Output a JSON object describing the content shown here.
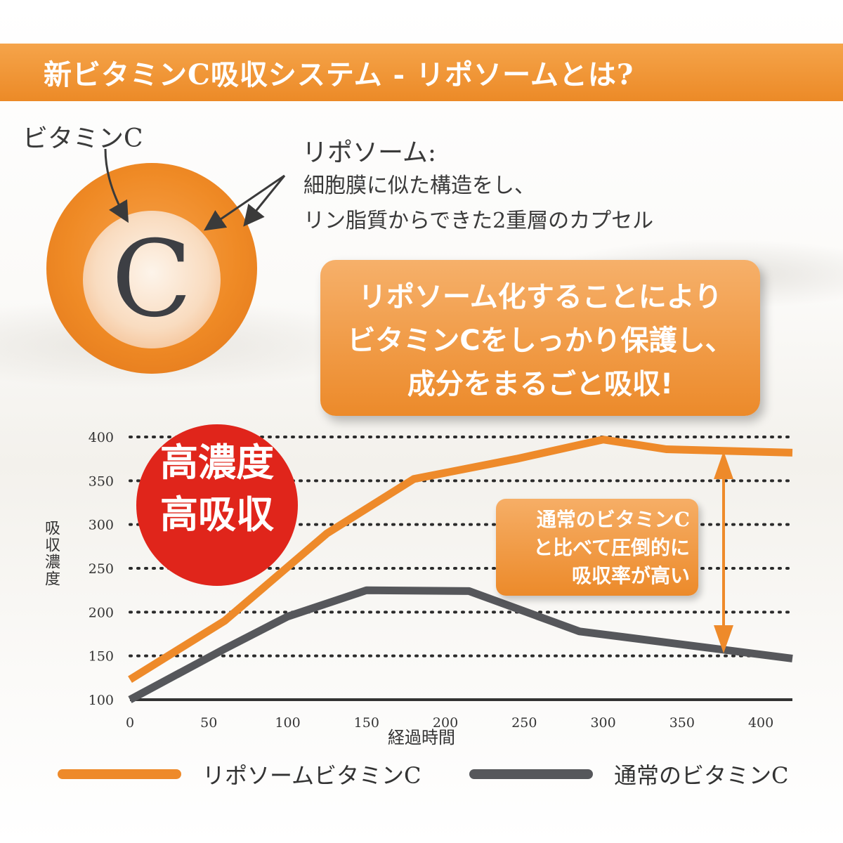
{
  "banner": {
    "title": "新ビタミンC吸収システム - リポソームとは?"
  },
  "diagram": {
    "vitamin_c_label": "ビタミンC",
    "c_letter": "C",
    "liposome_title": "リポソーム:",
    "liposome_desc_lines": [
      "細胞膜に似た構造をし、",
      "リン脂質からできた2重層のカプセル"
    ]
  },
  "callout": {
    "lines": [
      "リポソーム化することにより",
      "ビタミンCをしっかり保護し、",
      "成分をまるごと吸収!"
    ]
  },
  "badge": {
    "lines": [
      "高濃度",
      "高吸収"
    ]
  },
  "note": {
    "lines": [
      "通常のビタミンC",
      "と比べて圧倒的に",
      "吸収率が高い"
    ]
  },
  "colors": {
    "orange": "#ee8a2a",
    "gray": "#56575b",
    "red": "#e0251b",
    "banner": "#f09a3c"
  },
  "chart_data": {
    "type": "line",
    "xlabel": "経過時間",
    "ylabel": "吸収濃度",
    "xlim": [
      0,
      420
    ],
    "ylim": [
      100,
      400
    ],
    "x_ticks": [
      0,
      50,
      100,
      150,
      200,
      250,
      300,
      350,
      400
    ],
    "y_ticks": [
      100,
      150,
      200,
      250,
      300,
      350,
      400
    ],
    "grid": "horizontal dotted",
    "legend_position": "bottom",
    "series": [
      {
        "name": "リポソームビタミンC",
        "color": "#ee8a2a",
        "points": [
          [
            0,
            123
          ],
          [
            60,
            190
          ],
          [
            125,
            290
          ],
          [
            180,
            352
          ],
          [
            245,
            375
          ],
          [
            300,
            397
          ],
          [
            340,
            386
          ],
          [
            420,
            382
          ]
        ]
      },
      {
        "name": "通常のビタミンC",
        "color": "#56575b",
        "points": [
          [
            0,
            100
          ],
          [
            60,
            158
          ],
          [
            100,
            195
          ],
          [
            150,
            225
          ],
          [
            215,
            224
          ],
          [
            285,
            178
          ],
          [
            420,
            147
          ]
        ]
      }
    ]
  }
}
